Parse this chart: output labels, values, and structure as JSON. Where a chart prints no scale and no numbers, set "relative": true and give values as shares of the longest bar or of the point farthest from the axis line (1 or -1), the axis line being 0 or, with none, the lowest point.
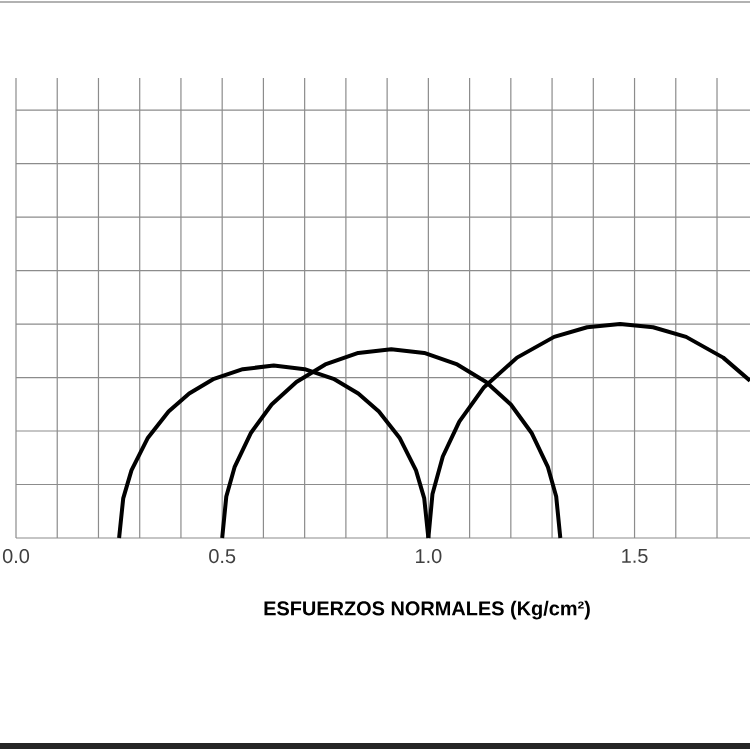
{
  "chart_data": {
    "type": "line",
    "xlabel": "ESFUERZOS NORMALES (Kg/cm²)",
    "xlim": [
      0,
      1.78
    ],
    "relative": true,
    "xticks": [
      {
        "value": 0,
        "label": "0.0"
      },
      {
        "value": 0.1,
        "label": null
      },
      {
        "value": 0.2,
        "label": null
      },
      {
        "value": 0.3,
        "label": null
      },
      {
        "value": 0.4,
        "label": null
      },
      {
        "value": 0.5,
        "label": "0.5"
      },
      {
        "value": 0.6,
        "label": null
      },
      {
        "value": 0.7,
        "label": null
      },
      {
        "value": 0.8,
        "label": null
      },
      {
        "value": 0.9,
        "label": null
      },
      {
        "value": 1.0,
        "label": "1.0"
      },
      {
        "value": 1.1,
        "label": null
      },
      {
        "value": 1.2,
        "label": null
      },
      {
        "value": 1.3,
        "label": null
      },
      {
        "value": 1.4,
        "label": null
      },
      {
        "value": 1.5,
        "label": "1.5"
      },
      {
        "value": 1.6,
        "label": null
      },
      {
        "value": 1.7,
        "label": null
      }
    ],
    "tick_labels": "x",
    "grid": true,
    "line_style": "solid",
    "series": [
      {
        "color": "#000000",
        "x": [
          0.25,
          0.26,
          0.28,
          0.32,
          0.37,
          0.42,
          0.48,
          0.55,
          0.625,
          0.7,
          0.77,
          0.83,
          0.88,
          0.93,
          0.97,
          0.99,
          1.0
        ],
        "values": [
          0,
          0.185,
          0.316,
          0.469,
          0.591,
          0.675,
          0.744,
          0.789,
          0.806,
          0.789,
          0.744,
          0.675,
          0.591,
          0.469,
          0.316,
          0.185,
          0
        ]
      },
      {
        "color": "#000000",
        "x": [
          0.5,
          0.51,
          0.53,
          0.57,
          0.62,
          0.68,
          0.75,
          0.83,
          0.91,
          0.99,
          1.07,
          1.14,
          1.2,
          1.25,
          1.29,
          1.31,
          1.32
        ],
        "values": [
          0,
          0.194,
          0.331,
          0.492,
          0.624,
          0.729,
          0.811,
          0.865,
          0.882,
          0.865,
          0.811,
          0.729,
          0.624,
          0.492,
          0.331,
          0.194,
          0
        ]
      },
      {
        "color": "#000000",
        "x": [
          1.0,
          1.01,
          1.035,
          1.075,
          1.135,
          1.215,
          1.305,
          1.385,
          1.465,
          1.545,
          1.625,
          1.715,
          1.78
        ],
        "values": [
          0,
          0.206,
          0.381,
          0.544,
          0.705,
          0.843,
          0.94,
          0.985,
          1,
          0.985,
          0.94,
          0.843,
          0.735
        ]
      }
    ]
  }
}
